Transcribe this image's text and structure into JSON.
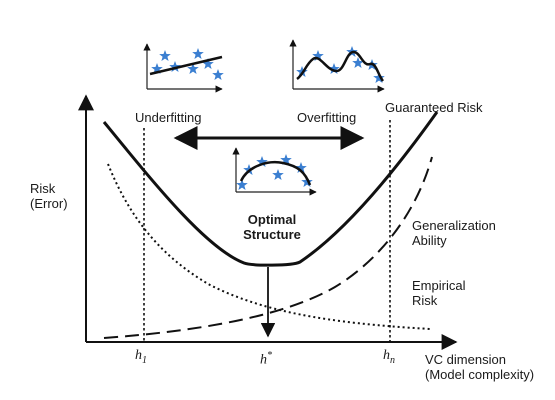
{
  "figure": {
    "y_axis_label_line1": "Risk",
    "y_axis_label_line2": "(Error)",
    "x_axis_label_line1": "VC dimension",
    "x_axis_label_line2": "(Model complexity)",
    "underfitting_label": "Underfitting",
    "overfitting_label": "Overfitting",
    "guaranteed_risk_label": "Guaranteed Risk",
    "optimal_line1": "Optimal",
    "optimal_line2": "Structure",
    "generalization_line1": "Generalization",
    "generalization_line2": "Ability",
    "empirical_line1": "Empirical",
    "empirical_line2": "Risk",
    "tick_h1_base": "h",
    "tick_h1_sub": "1",
    "tick_hstar_base": "h",
    "tick_hstar_sup": "*",
    "tick_hn_base": "h",
    "tick_hn_sub": "n"
  },
  "colors": {
    "curve": "#111111",
    "star": "#3b7fd1"
  },
  "icons": {
    "point_marker": "star-icon"
  }
}
